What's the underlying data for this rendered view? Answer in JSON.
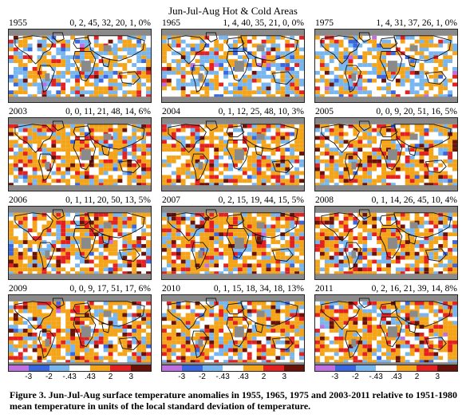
{
  "figure_title": "Jun-Jul-Aug Hot & Cold Areas",
  "colors": {
    "c_lt_neg3": "#c06fe0",
    "c_neg3_neg2": "#3a66e0",
    "c_neg2_neg043": "#78b6f0",
    "c_neg043_043": "#ffffff",
    "c_043_2": "#f4a418",
    "c_2_3": "#e42020",
    "c_gt3": "#6b1208",
    "land_missing": "#8a8a8a",
    "ocean_missing": "#eeeeee"
  },
  "panels": [
    {
      "year": "1955",
      "stats": "0, 2, 45, 32, 20, 1, 0%"
    },
    {
      "year": "1965",
      "stats": "1, 4, 40, 35, 21, 0, 0%"
    },
    {
      "year": "1975",
      "stats": "1, 4, 31, 37, 26, 1, 0%"
    },
    {
      "year": "2003",
      "stats": "0, 0, 11, 21, 48, 14, 6%"
    },
    {
      "year": "2004",
      "stats": "0, 1, 12, 25, 48, 10, 3%"
    },
    {
      "year": "2005",
      "stats": "0, 0, 9, 20, 51, 16, 5%"
    },
    {
      "year": "2006",
      "stats": "0, 1, 11, 20, 50, 13, 5%"
    },
    {
      "year": "2007",
      "stats": "0, 2, 15, 19, 44, 15, 5%"
    },
    {
      "year": "2008",
      "stats": "0, 1, 14, 26, 45, 10, 4%"
    },
    {
      "year": "2009",
      "stats": "0, 0, 9, 17, 51, 17, 6%"
    },
    {
      "year": "2010",
      "stats": "0, 1, 15, 18, 34, 18, 13%"
    },
    {
      "year": "2011",
      "stats": "0, 2, 16, 21, 39, 14, 8%"
    }
  ],
  "legend": {
    "ticks": [
      "-3",
      "-2",
      "-.43",
      ".43",
      "2",
      "3"
    ]
  },
  "caption": "Figure 3.  Jun-Jul-Aug surface temperature anomalies in 1955, 1965, 1975 and 2003-2011 relative to 1951-1980 mean temperature in units of the local standard deviation of temperature."
}
